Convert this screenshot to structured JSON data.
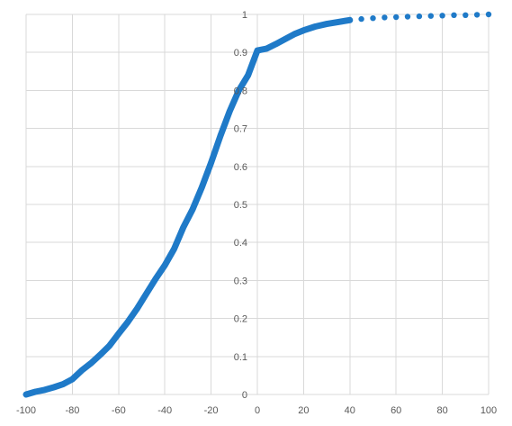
{
  "chart_data": {
    "type": "scatter",
    "title": "",
    "xlabel": "",
    "ylabel": "",
    "xlim": [
      -100,
      100
    ],
    "ylim": [
      0,
      1
    ],
    "x_ticks": [
      "-100",
      "-80",
      "-60",
      "-40",
      "-20",
      "0",
      "20",
      "40",
      "60",
      "80",
      "100"
    ],
    "y_ticks": [
      "0",
      "0.1",
      "0.2",
      "0.3",
      "0.4",
      "0.5",
      "0.6",
      "0.7",
      "0.8",
      "0.9",
      "1"
    ],
    "grid": true,
    "legend": "none",
    "series_color": "#1f7ac8",
    "series": [
      {
        "x": [
          -100,
          -96,
          -92,
          -88,
          -84,
          -80,
          -76,
          -72,
          -68,
          -64,
          -60,
          -56,
          -52,
          -48,
          -44,
          -40,
          -36,
          -32,
          -28,
          -24,
          -20,
          -16,
          -12,
          -8,
          -4,
          0,
          4,
          8,
          12,
          16,
          20,
          25,
          30,
          35,
          40,
          45,
          50,
          55,
          60,
          65,
          70,
          75,
          80,
          85,
          90,
          95,
          100
        ],
        "y": [
          0.0,
          0.007,
          0.012,
          0.019,
          0.027,
          0.04,
          0.063,
          0.082,
          0.104,
          0.128,
          0.16,
          0.191,
          0.226,
          0.265,
          0.304,
          0.34,
          0.383,
          0.44,
          0.487,
          0.545,
          0.61,
          0.68,
          0.745,
          0.8,
          0.84,
          0.905,
          0.91,
          0.922,
          0.935,
          0.948,
          0.958,
          0.968,
          0.975,
          0.98,
          0.985,
          0.988,
          0.99,
          0.992,
          0.993,
          0.994,
          0.995,
          0.996,
          0.997,
          0.998,
          0.998,
          0.999,
          1.0
        ]
      }
    ]
  }
}
